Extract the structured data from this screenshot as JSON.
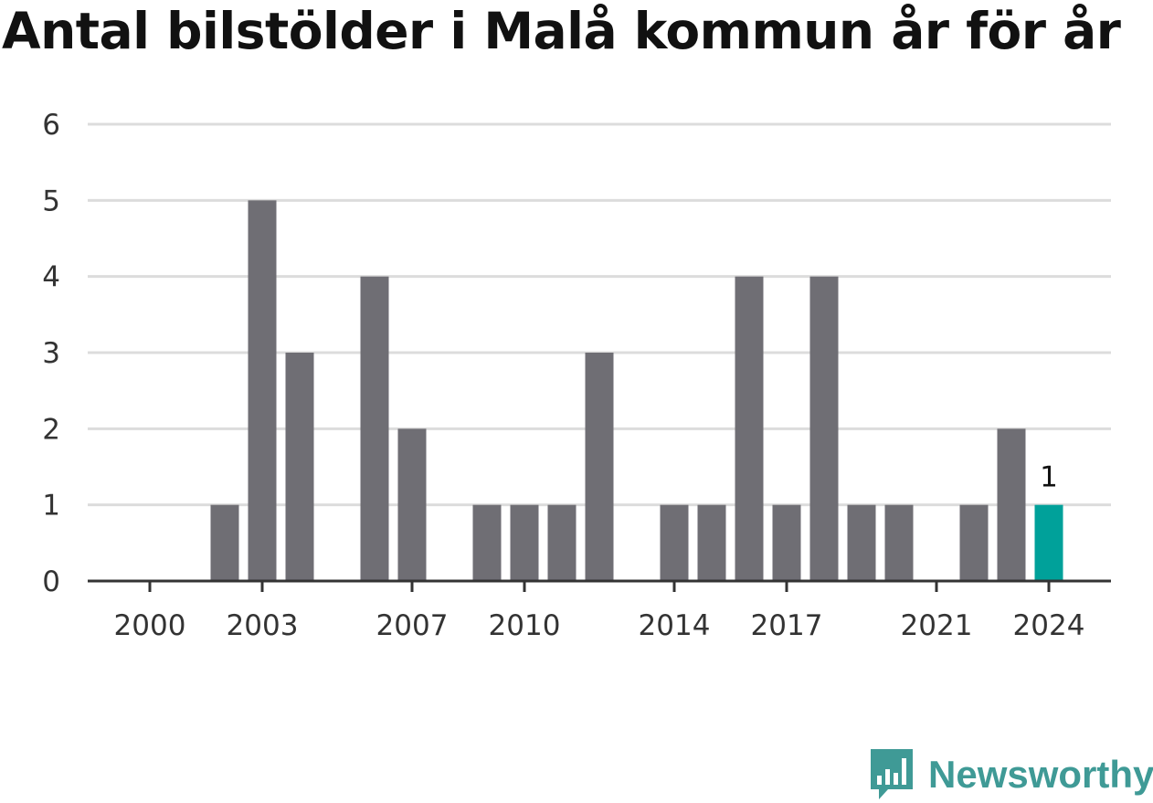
{
  "chart_data": {
    "type": "bar",
    "title": "Antal bilstölder i Malå kommun år för år",
    "xlabel": "",
    "ylabel": "",
    "categories": [
      2000,
      2001,
      2002,
      2003,
      2004,
      2005,
      2006,
      2007,
      2008,
      2009,
      2010,
      2011,
      2012,
      2013,
      2014,
      2015,
      2016,
      2017,
      2018,
      2019,
      2020,
      2021,
      2022,
      2023,
      2024
    ],
    "values": [
      0,
      0,
      1,
      5,
      3,
      0,
      4,
      2,
      0,
      1,
      1,
      1,
      3,
      0,
      1,
      1,
      4,
      1,
      4,
      1,
      1,
      0,
      1,
      2,
      1
    ],
    "x_tick_labels": [
      "2000",
      "2003",
      "2007",
      "2010",
      "2014",
      "2017",
      "2021",
      "2024"
    ],
    "y_ticks": [
      0,
      1,
      2,
      3,
      4,
      5,
      6
    ],
    "ylim": [
      0,
      6
    ],
    "grid": true,
    "highlight_index": 24,
    "highlight_label": "1",
    "bar_color": "#6f6e74",
    "highlight_color": "#00a19a",
    "grid_color": "#dcdcdc",
    "axis_color": "#333333"
  },
  "brand": {
    "name": "Newsworthy",
    "color": "#3f9a96",
    "icon": "bar-chart-speech-bubble-icon"
  }
}
